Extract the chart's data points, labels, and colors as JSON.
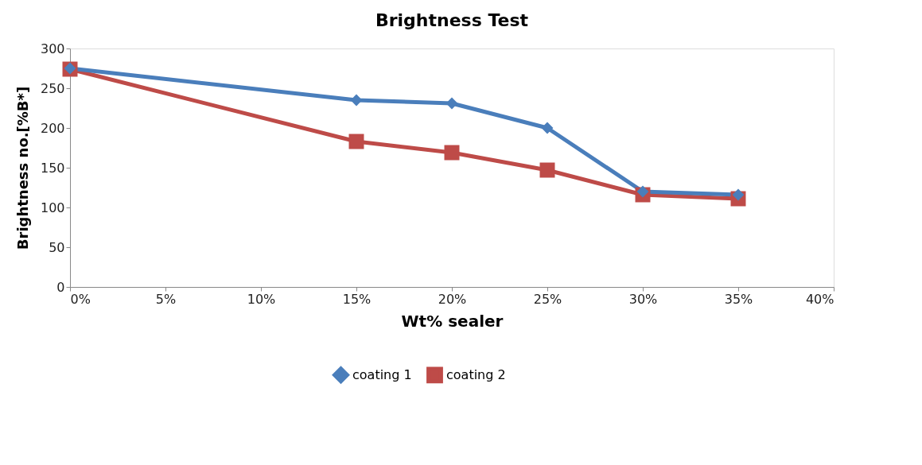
{
  "chart_data": {
    "type": "line",
    "title": "Brightness Test",
    "xlabel": "Wt%  sealer",
    "ylabel": "Brightness  no.[%B*]",
    "x": [
      0,
      15,
      20,
      25,
      30,
      35
    ],
    "series": [
      {
        "name": "coating 1",
        "color": "#4a7ebb",
        "marker": "diamond",
        "values": [
          275,
          235,
          231,
          200,
          120,
          116
        ]
      },
      {
        "name": "coating 2",
        "color": "#be4b48",
        "marker": "square",
        "values": [
          274,
          183,
          169,
          147,
          116,
          111
        ]
      }
    ],
    "xlim": [
      0,
      40
    ],
    "xticks": [
      {
        "value": 0,
        "label": "0%"
      },
      {
        "value": 5,
        "label": "5%"
      },
      {
        "value": 10,
        "label": "10%"
      },
      {
        "value": 15,
        "label": "15%"
      },
      {
        "value": 20,
        "label": "20%"
      },
      {
        "value": 25,
        "label": "25%"
      },
      {
        "value": 30,
        "label": "30%"
      },
      {
        "value": 35,
        "label": "35%"
      },
      {
        "value": 40,
        "label": "40%"
      }
    ],
    "ylim": [
      0,
      300
    ],
    "yticks": [
      0,
      50,
      100,
      150,
      200,
      250,
      300
    ],
    "grid": false,
    "legend": "bottom",
    "line_style": "solid"
  }
}
